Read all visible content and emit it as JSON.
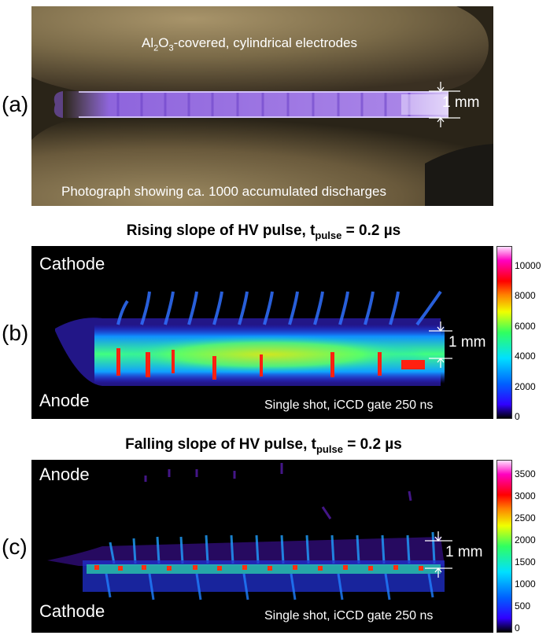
{
  "panels": [
    {
      "letter": "(a)",
      "top_text_main": "Al",
      "top_text_sub1": "2",
      "top_text_mid": "O",
      "top_text_sub2": "3",
      "top_text_rest": "-covered, cylindrical electrodes",
      "bottom_text": "Photograph showing ca. 1000 accumulated discharges",
      "scale": "1 mm"
    },
    {
      "letter": "(b)",
      "heading_main": "Rising slope of HV pulse, t",
      "heading_sub": "pulse",
      "heading_rest": " = 0.2 µs",
      "top_label": "Cathode",
      "bottom_label": "Anode",
      "note": "Single shot, iCCD gate 250 ns",
      "scale": "1 mm",
      "colorbar_ticks": [
        "10000",
        "8000",
        "6000",
        "4000",
        "2000",
        "0"
      ]
    },
    {
      "letter": "(c)",
      "heading_main": "Falling slope of HV pulse, t",
      "heading_sub": "pulse",
      "heading_rest": " = 0.2 µs",
      "top_label": "Anode",
      "bottom_label": "Cathode",
      "note": "Single shot, iCCD gate 250 ns",
      "scale": "1 mm",
      "colorbar_ticks": [
        "3500",
        "3000",
        "2500",
        "2000",
        "1500",
        "1000",
        "500",
        "0"
      ]
    }
  ]
}
